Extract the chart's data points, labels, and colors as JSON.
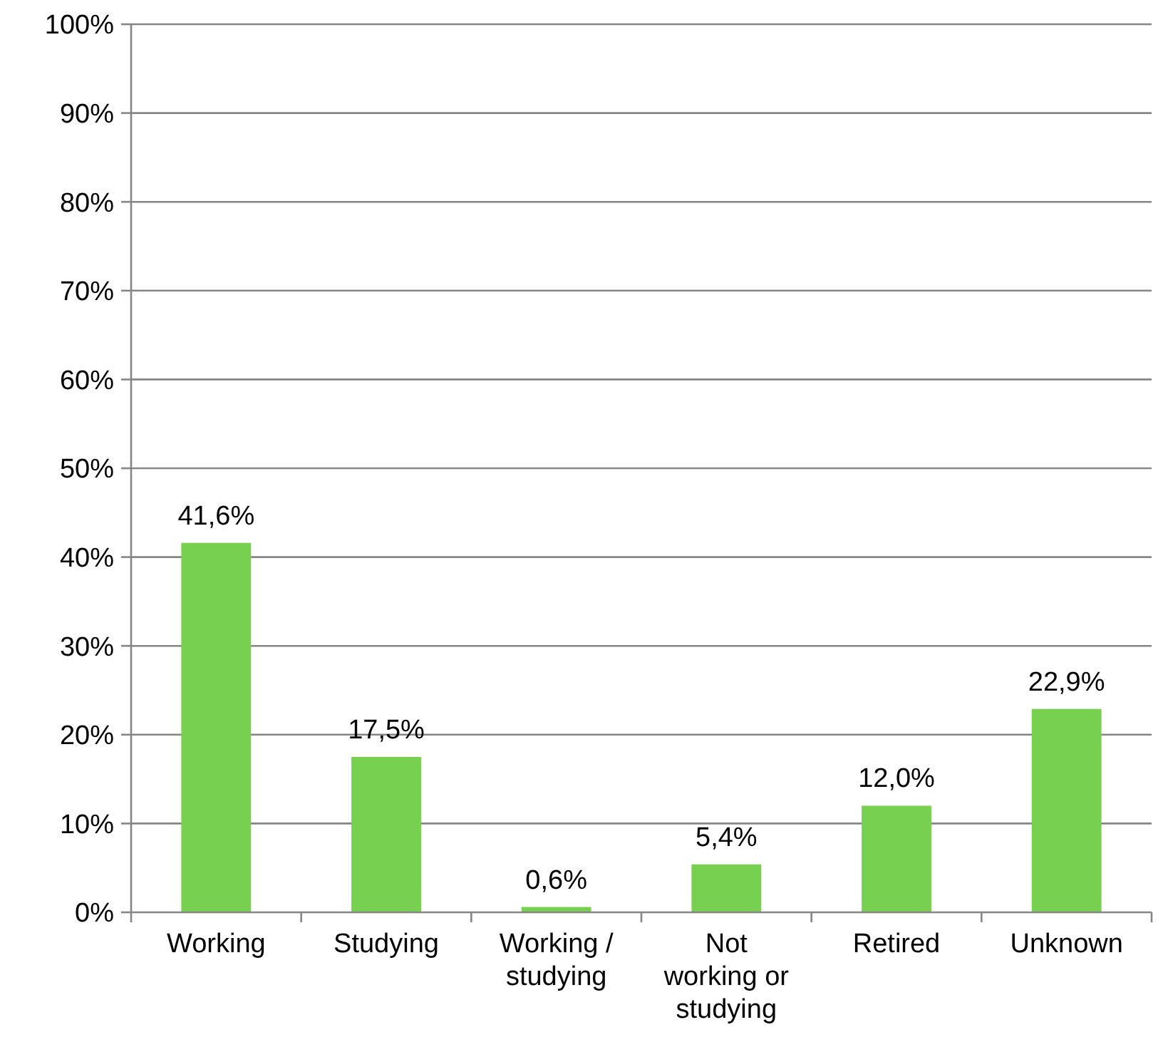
{
  "chart_data": {
    "type": "bar",
    "categories": [
      "Working",
      "Studying",
      "Working / studying",
      "Not working or studying",
      "Retired",
      "Unknown"
    ],
    "values": [
      41.6,
      17.5,
      0.6,
      5.4,
      12.0,
      22.9
    ],
    "value_labels": [
      "41,6%",
      "17,5%",
      "0,6%",
      "5,4%",
      "12,0%",
      "22,9%"
    ],
    "color": "#77d04f",
    "ylim": [
      0,
      100
    ],
    "yticks": [
      {
        "value": 0,
        "label": "0%"
      },
      {
        "value": 10,
        "label": "10%"
      },
      {
        "value": 20,
        "label": "20%"
      },
      {
        "value": 30,
        "label": "30%"
      },
      {
        "value": 40,
        "label": "40%"
      },
      {
        "value": 50,
        "label": "50%"
      },
      {
        "value": 60,
        "label": "60%"
      },
      {
        "value": 70,
        "label": "70%"
      },
      {
        "value": 80,
        "label": "80%"
      },
      {
        "value": 90,
        "label": "90%"
      },
      {
        "value": 100,
        "label": "100%"
      }
    ],
    "grid": true
  }
}
